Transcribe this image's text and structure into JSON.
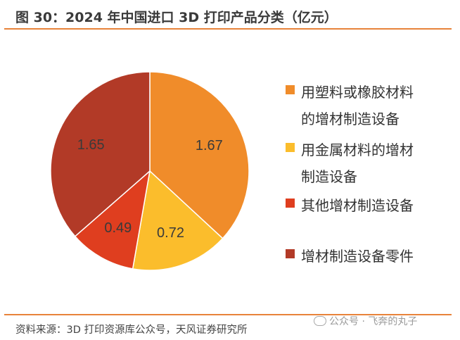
{
  "title": "图 30：2024 年中国进口 3D 打印产品分类（亿元）",
  "source": "资料来源：3D 打印资源库公众号，天风证券研究所",
  "watermark": "公众号 · 飞奔的丸子",
  "watermark_icon": "wechat-icon",
  "colors": {
    "accent_rule": "#e8833a"
  },
  "chart_data": {
    "type": "pie",
    "title": "图 30：2024 年中国进口 3D 打印产品分类（亿元）",
    "unit": "亿元",
    "start_angle_deg": 0,
    "direction": "clockwise",
    "legend_position": "right",
    "slices": [
      {
        "label": "用塑料或橡胶材料的增材制造设备",
        "value": 1.67,
        "color": "#f08c2a"
      },
      {
        "label": "用金属材料的增材制造设备",
        "value": 0.72,
        "color": "#fbbd2c"
      },
      {
        "label": "其他增材制造设备",
        "value": 0.49,
        "color": "#df3e1f"
      },
      {
        "label": "增材制造设备零件",
        "value": 1.65,
        "color": "#b23a27"
      }
    ],
    "data_labels": [
      "1.67",
      "0.72",
      "0.49",
      "1.65"
    ],
    "legend_lines": [
      [
        "用塑料或橡胶材料",
        "的增材制造设备"
      ],
      [
        "用金属材料的增材",
        "制造设备"
      ],
      [
        "其他增材制造设备"
      ],
      [
        "增材制造设备零件"
      ]
    ]
  }
}
